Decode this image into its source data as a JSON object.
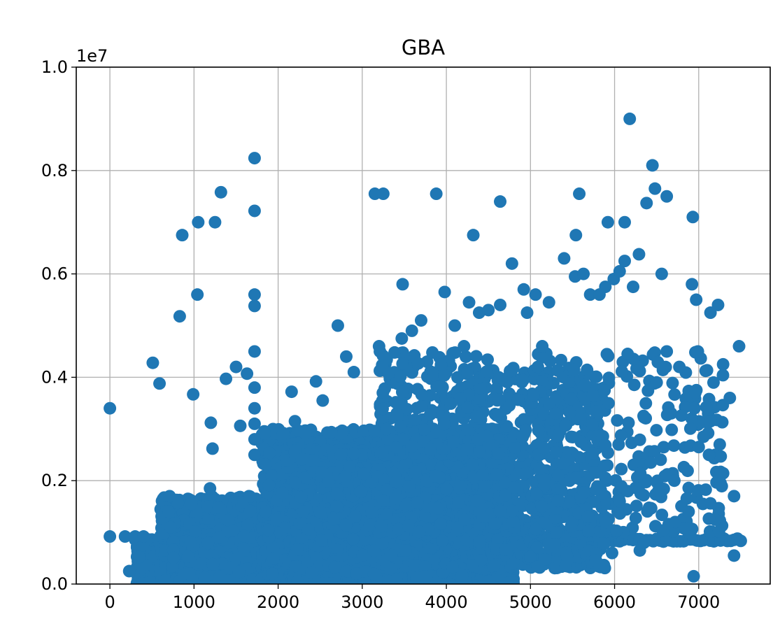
{
  "chart_data": {
    "type": "scatter",
    "title": "GBA",
    "xlabel": "",
    "ylabel": "",
    "y_offset_label": "1e7",
    "xlim": [
      -400,
      7850
    ],
    "ylim": [
      0,
      1.0
    ],
    "x_ticks": [
      0,
      1000,
      2000,
      3000,
      4000,
      5000,
      6000,
      7000
    ],
    "x_tick_labels": [
      "0",
      "1000",
      "2000",
      "3000",
      "4000",
      "5000",
      "6000",
      "7000"
    ],
    "y_ticks": [
      0.0,
      0.2,
      0.4,
      0.6,
      0.8,
      1.0
    ],
    "y_tick_labels": [
      "0.0",
      "0.2",
      "0.4",
      "0.6",
      "0.8",
      "1.0"
    ],
    "grid": true,
    "legend": "none",
    "color": "#1f77b4",
    "series": [
      {
        "points": [
          [
            0,
            0.34
          ],
          [
            0,
            0.092
          ],
          [
            180,
            0.092
          ],
          [
            230,
            0.025
          ],
          [
            300,
            0.092
          ],
          [
            400,
            0.092
          ],
          [
            510,
            0.428
          ],
          [
            590,
            0.388
          ],
          [
            710,
            0.17
          ],
          [
            700,
            0.14
          ],
          [
            720,
            0.11
          ],
          [
            860,
            0.675
          ],
          [
            830,
            0.518
          ],
          [
            990,
            0.367
          ],
          [
            1040,
            0.56
          ],
          [
            1050,
            0.7
          ],
          [
            1250,
            0.7
          ],
          [
            1320,
            0.758
          ],
          [
            1200,
            0.312
          ],
          [
            1220,
            0.262
          ],
          [
            1190,
            0.185
          ],
          [
            1380,
            0.397
          ],
          [
            1500,
            0.42
          ],
          [
            1550,
            0.306
          ],
          [
            1630,
            0.407
          ],
          [
            1720,
            0.824
          ],
          [
            1720,
            0.722
          ],
          [
            1720,
            0.56
          ],
          [
            1720,
            0.538
          ],
          [
            1720,
            0.45
          ],
          [
            1720,
            0.38
          ],
          [
            1720,
            0.34
          ],
          [
            1720,
            0.31
          ],
          [
            1720,
            0.28
          ],
          [
            1720,
            0.25
          ],
          [
            2160,
            0.372
          ],
          [
            2060,
            0.292
          ],
          [
            2200,
            0.315
          ],
          [
            2450,
            0.392
          ],
          [
            2530,
            0.355
          ],
          [
            2710,
            0.5
          ],
          [
            2810,
            0.44
          ],
          [
            2900,
            0.41
          ],
          [
            3150,
            0.755
          ],
          [
            3250,
            0.755
          ],
          [
            3200,
            0.46
          ],
          [
            3210,
            0.45
          ],
          [
            3480,
            0.58
          ],
          [
            3470,
            0.475
          ],
          [
            3590,
            0.49
          ],
          [
            3700,
            0.51
          ],
          [
            3880,
            0.755
          ],
          [
            3980,
            0.565
          ],
          [
            4100,
            0.5
          ],
          [
            4210,
            0.46
          ],
          [
            4320,
            0.675
          ],
          [
            4270,
            0.545
          ],
          [
            4390,
            0.525
          ],
          [
            4500,
            0.53
          ],
          [
            4640,
            0.74
          ],
          [
            4640,
            0.54
          ],
          [
            4780,
            0.62
          ],
          [
            4920,
            0.57
          ],
          [
            4960,
            0.525
          ],
          [
            5060,
            0.56
          ],
          [
            5140,
            0.46
          ],
          [
            5220,
            0.545
          ],
          [
            5400,
            0.63
          ],
          [
            5540,
            0.675
          ],
          [
            5530,
            0.595
          ],
          [
            5580,
            0.755
          ],
          [
            5630,
            0.6
          ],
          [
            5710,
            0.56
          ],
          [
            5820,
            0.56
          ],
          [
            5890,
            0.575
          ],
          [
            5920,
            0.7
          ],
          [
            5990,
            0.59
          ],
          [
            6060,
            0.605
          ],
          [
            6120,
            0.7
          ],
          [
            6120,
            0.625
          ],
          [
            6180,
            0.9
          ],
          [
            6220,
            0.575
          ],
          [
            6290,
            0.638
          ],
          [
            6380,
            0.737
          ],
          [
            6450,
            0.81
          ],
          [
            6480,
            0.765
          ],
          [
            6560,
            0.6
          ],
          [
            6620,
            0.75
          ],
          [
            6930,
            0.71
          ],
          [
            6920,
            0.58
          ],
          [
            6970,
            0.55
          ],
          [
            7140,
            0.525
          ],
          [
            7230,
            0.54
          ],
          [
            7480,
            0.46
          ],
          [
            7370,
            0.36
          ],
          [
            7420,
            0.17
          ],
          [
            7420,
            0.055
          ],
          [
            6940,
            0.015
          ],
          [
            6300,
            0.065
          ],
          [
            5780,
            0.045
          ],
          [
            5420,
            0.035
          ],
          [
            5970,
            0.06
          ],
          [
            6060,
            0.16
          ],
          [
            6350,
            0.08
          ],
          [
            6520,
            0.18
          ],
          [
            6710,
            0.2
          ],
          [
            6720,
            0.12
          ],
          [
            7050,
            0.155
          ],
          [
            7260,
            0.195
          ],
          [
            7250,
            0.27
          ],
          [
            7290,
            0.425
          ],
          [
            6950,
            0.34
          ],
          [
            6770,
            0.42
          ],
          [
            6620,
            0.45
          ],
          [
            6990,
            0.45
          ],
          [
            6500,
            0.39
          ],
          [
            6430,
            0.235
          ],
          [
            6310,
            0.175
          ],
          [
            7140,
            0.315
          ],
          [
            7000,
            0.265
          ],
          [
            6880,
            0.14
          ]
        ]
      }
    ],
    "dense_blobs": [
      {
        "x": [
          320,
          2000
        ],
        "y": [
          0.0,
          0.08
        ],
        "n": 900
      },
      {
        "x": [
          600,
          1800
        ],
        "y": [
          0.0,
          0.17
        ],
        "n": 700
      },
      {
        "x": [
          1800,
          4800
        ],
        "y": [
          0.0,
          0.3
        ],
        "n": 2600
      },
      {
        "x": [
          2200,
          4300
        ],
        "y": [
          0.0,
          0.26
        ],
        "n": 1200
      },
      {
        "x": [
          4300,
          5900
        ],
        "y": [
          0.03,
          0.42
        ],
        "n": 600
      },
      {
        "x": [
          5000,
          7300
        ],
        "y": [
          0.1,
          0.45
        ],
        "n": 260
      },
      {
        "x": [
          3200,
          4500
        ],
        "y": [
          0.25,
          0.45
        ],
        "n": 200
      }
    ],
    "baseline_band": {
      "x": [
        300,
        7500
      ],
      "y": 0.085
    }
  }
}
